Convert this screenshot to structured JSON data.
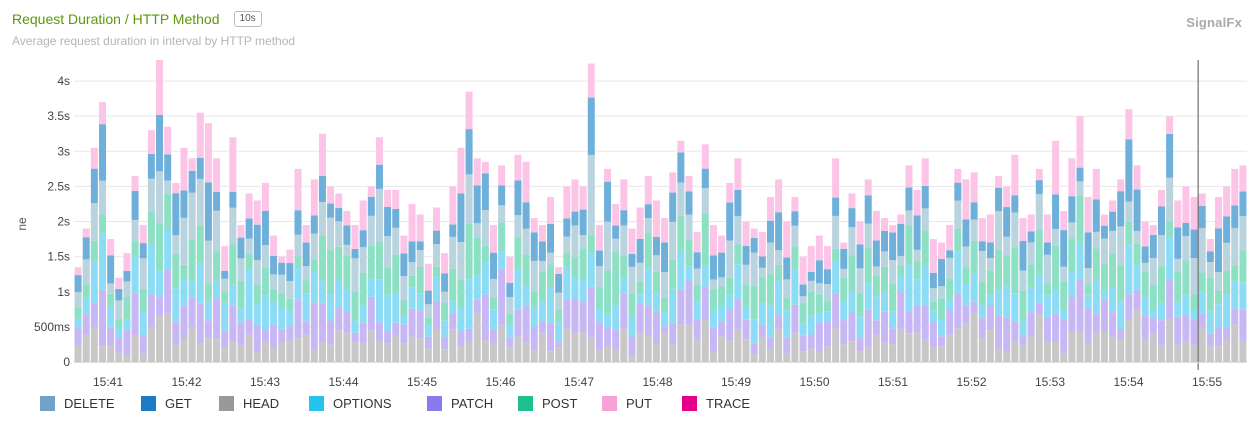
{
  "header": {
    "title": "Request Duration / HTTP Method",
    "resolution": "10s",
    "subtitle": "Average request duration in interval by HTTP method",
    "brand": "SignalFx"
  },
  "chart_data": {
    "type": "bar",
    "stacked": true,
    "ylabel": "ne",
    "ylim": [
      0,
      4.3
    ],
    "yticks": [
      "0",
      "500ms",
      "1s",
      "1.5s",
      "2s",
      "2.5s",
      "3s",
      "3.5s",
      "4s"
    ],
    "xticks": [
      "15:41",
      "15:42",
      "15:43",
      "15:44",
      "15:45",
      "15:46",
      "15:47",
      "15:48",
      "15:49",
      "15:50",
      "15:51",
      "15:52",
      "15:53",
      "15:54",
      "15:55"
    ],
    "grid": true,
    "legend_position": "bottom",
    "legend": [
      {
        "name": "DELETE",
        "color": "#6fa3c8"
      },
      {
        "name": "GET",
        "color": "#1c7bc2"
      },
      {
        "name": "HEAD",
        "color": "#999999"
      },
      {
        "name": "OPTIONS",
        "color": "#27c2f0"
      },
      {
        "name": "PATCH",
        "color": "#8a7af0"
      },
      {
        "name": "POST",
        "color": "#1fbf8f"
      },
      {
        "name": "PUT",
        "color": "#f7a1d8"
      },
      {
        "name": "TRACE",
        "color": "#e5008a"
      }
    ],
    "totals": [
      1.35,
      1.9,
      3.05,
      3.7,
      1.75,
      1.2,
      1.55,
      2.65,
      1.95,
      3.3,
      4.3,
      3.35,
      2.55,
      3.05,
      2.9,
      3.55,
      3.4,
      2.9,
      1.65,
      3.2,
      1.95,
      2.4,
      2.3,
      2.55,
      1.8,
      1.5,
      1.6,
      2.75,
      1.95,
      2.6,
      3.25,
      2.5,
      2.4,
      2.15,
      1.95,
      2.3,
      2.5,
      3.2,
      2.45,
      2.45,
      1.8,
      2.25,
      2.1,
      1.4,
      2.2,
      1.55,
      2.5,
      3.05,
      3.85,
      2.9,
      2.85,
      1.95,
      2.8,
      1.5,
      2.95,
      2.85,
      2.05,
      1.95,
      2.35,
      1.35,
      2.5,
      2.6,
      2.5,
      4.25,
      1.95,
      2.75,
      2.25,
      2.6,
      1.9,
      2.2,
      2.65,
      2.3,
      2.05,
      2.7,
      3.15,
      2.65,
      1.85,
      3.1,
      1.95,
      1.8,
      2.55,
      2.9,
      2.0,
      1.9,
      1.85,
      2.35,
      2.6,
      2.0,
      2.35,
      1.5,
      1.65,
      1.8,
      1.65,
      2.9,
      1.7,
      2.4,
      2.0,
      2.6,
      2.15,
      2.05,
      1.95,
      2.1,
      2.8,
      2.45,
      2.9,
      1.75,
      1.7,
      1.95,
      2.75,
      2.6,
      2.7,
      2.05,
      2.1,
      2.65,
      2.5,
      2.95,
      2.05,
      2.1,
      2.75,
      2.1,
      3.15,
      2.15,
      2.9,
      3.5,
      2.35,
      2.75,
      2.1,
      2.3,
      2.6,
      3.6,
      2.8,
      2.0,
      1.95,
      2.45,
      3.5,
      2.3,
      2.5,
      2.35,
      2.4,
      1.75,
      2.35,
      2.5,
      2.75,
      2.8
    ],
    "cursor_at_bar": 138
  }
}
